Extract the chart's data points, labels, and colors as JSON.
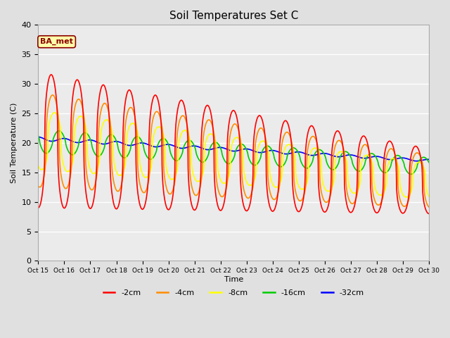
{
  "title": "Soil Temperatures Set C",
  "xlabel": "Time",
  "ylabel": "Soil Temperature (C)",
  "annotation": "BA_met",
  "ylim": [
    0,
    40
  ],
  "yticks": [
    0,
    5,
    10,
    15,
    20,
    25,
    30,
    35,
    40
  ],
  "xtick_labels": [
    "Oct 15",
    "Oct 16",
    "Oct 17",
    "Oct 18",
    "Oct 19",
    "Oct 20",
    "Oct 21",
    "Oct 22",
    "Oct 23",
    "Oct 24",
    "Oct 25",
    "Oct 26",
    "Oct 27",
    "Oct 28",
    "Oct 29",
    "Oct 30"
  ],
  "series_labels": [
    "-2cm",
    "-4cm",
    "-8cm",
    "-16cm",
    "-32cm"
  ],
  "series_colors": [
    "#FF0000",
    "#FF8C00",
    "#FFFF00",
    "#00CC00",
    "#0000FF"
  ],
  "background_color": "#E0E0E0",
  "plot_bg_color": "#EBEBEB",
  "duration_days": 15,
  "means_start": [
    20.5,
    20.5,
    20.5,
    20.3,
    20.7
  ],
  "means_end": [
    13.5,
    13.5,
    13.5,
    16.0,
    17.0
  ],
  "amps_start": [
    11.5,
    8.0,
    5.0,
    2.0,
    0.3
  ],
  "amps_end": [
    5.5,
    4.5,
    3.0,
    1.5,
    0.2
  ],
  "phase_lags": [
    0.0,
    0.35,
    0.8,
    1.9,
    3.14
  ],
  "title_fontsize": 11,
  "axis_fontsize": 8,
  "annot_fontsize": 8
}
